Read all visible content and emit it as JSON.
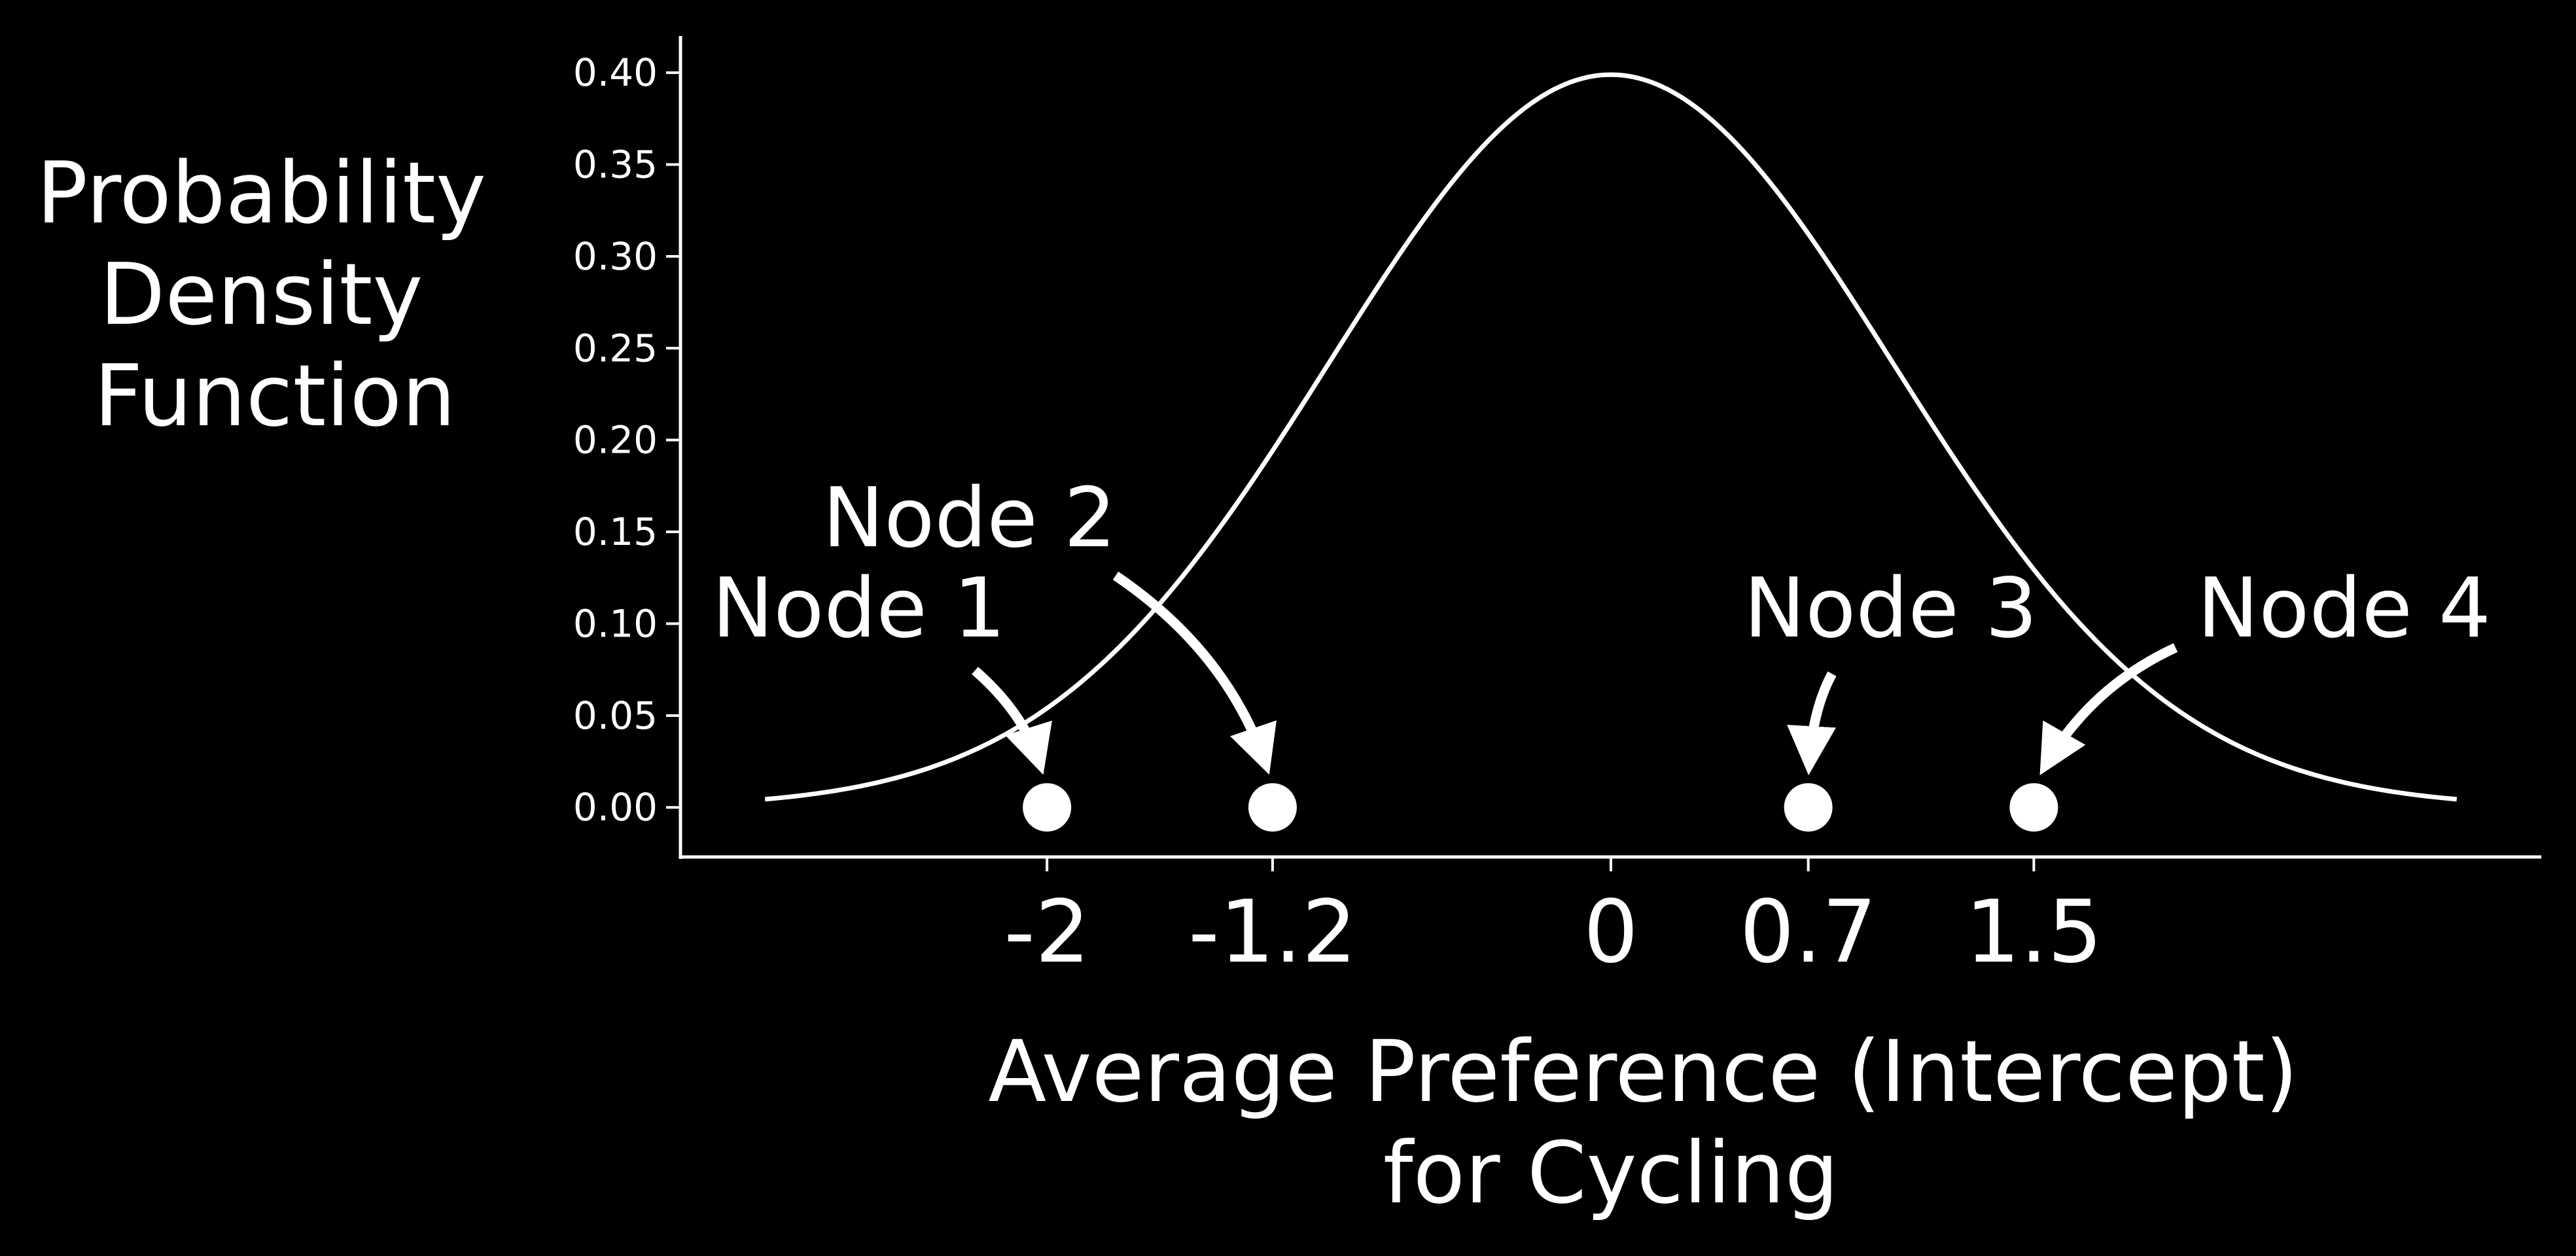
{
  "colors": {
    "background": "#000000",
    "foreground": "#ffffff"
  },
  "chart_data": {
    "type": "line",
    "title": "",
    "ylabel_lines": [
      "Probability",
      "Density",
      "Function"
    ],
    "xlabel_lines": [
      "Average Preference (Intercept)",
      "for Cycling"
    ],
    "series": [
      {
        "kind": "normal-pdf",
        "mean": 0,
        "sd": 1,
        "x_range": [
          -3,
          3
        ]
      }
    ],
    "xlim": [
      -3.3,
      3.3
    ],
    "ylim": [
      -0.027,
      0.42
    ],
    "y_ticks": [
      {
        "value": 0.0,
        "label": "0.00"
      },
      {
        "value": 0.05,
        "label": "0.05"
      },
      {
        "value": 0.1,
        "label": "0.10"
      },
      {
        "value": 0.15,
        "label": "0.15"
      },
      {
        "value": 0.2,
        "label": "0.20"
      },
      {
        "value": 0.25,
        "label": "0.25"
      },
      {
        "value": 0.3,
        "label": "0.30"
      },
      {
        "value": 0.35,
        "label": "0.35"
      },
      {
        "value": 0.4,
        "label": "0.40"
      }
    ],
    "x_ticks": [
      {
        "value": -2,
        "label": "-2"
      },
      {
        "value": -1.2,
        "label": "-1.2"
      },
      {
        "value": 0,
        "label": "0"
      },
      {
        "value": 0.7,
        "label": "0.7"
      },
      {
        "value": 1.5,
        "label": "1.5"
      }
    ],
    "points": [
      {
        "name": "Node 1",
        "x": -2,
        "y": 0
      },
      {
        "name": "Node 2",
        "x": -1.2,
        "y": 0
      },
      {
        "name": "Node 3",
        "x": 0.7,
        "y": 0
      },
      {
        "name": "Node 4",
        "x": 1.5,
        "y": 0
      }
    ],
    "annotations": [
      {
        "text": "Node 1",
        "target_x": -2,
        "target_y": 0
      },
      {
        "text": "Node 2",
        "target_x": -1.2,
        "target_y": 0
      },
      {
        "text": "Node 3",
        "target_x": 0.7,
        "target_y": 0
      },
      {
        "text": "Node 4",
        "target_x": 1.5,
        "target_y": 0
      }
    ],
    "grid": false,
    "legend": "none",
    "spines": [
      "left",
      "bottom"
    ]
  }
}
